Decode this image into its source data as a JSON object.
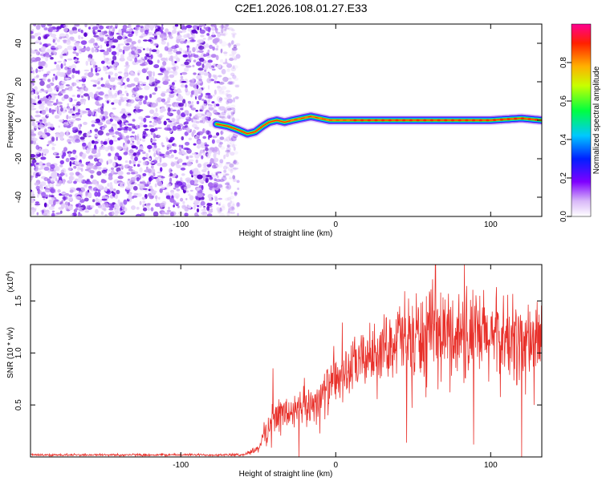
{
  "title": "C2E1.2026.108.01.27.E33",
  "colors": {
    "snr_line": "#e8302a",
    "plot_bg": "#ffffff",
    "axis": "#000000"
  },
  "chart_data": [
    {
      "type": "heatmap",
      "xlabel": "Height of straight line (km)",
      "ylabel": "Frequency (Hz)",
      "xlim": [
        -197,
        133
      ],
      "ylim": [
        -50,
        50
      ],
      "x_ticks": [
        -100,
        0,
        100
      ],
      "x_tick_labels": [
        "-100",
        "0",
        "100"
      ],
      "y_ticks": [
        -40,
        -20,
        0,
        20,
        40
      ],
      "y_tick_labels": [
        "-40",
        "-20",
        "0",
        "20",
        "40"
      ],
      "noise_region_x": [
        -197,
        -65
      ],
      "ridge": {
        "x": [
          -77,
          -70,
          -63,
          -57,
          -52,
          -47,
          -43,
          -38,
          -33,
          -28,
          -22,
          -16,
          -10,
          -4,
          0,
          20,
          60,
          100,
          120,
          133
        ],
        "y": [
          -2,
          -3,
          -5,
          -7,
          -6,
          -3,
          -1,
          0,
          -1,
          0,
          1,
          2,
          1,
          0,
          0,
          0,
          0,
          0,
          1,
          0
        ]
      },
      "colorbar": {
        "label": "Normalized spectral amplitude",
        "ticks": [
          0.0,
          0.2,
          0.4,
          0.6,
          0.8
        ],
        "tick_labels": [
          "0.0",
          "0.2",
          "0.4",
          "0.6",
          "0.8"
        ],
        "range": [
          0,
          1
        ]
      }
    },
    {
      "type": "line",
      "xlabel": "Height of straight line (km)",
      "ylabel": "SNR (10 * v/v)",
      "multiplier": "(x10",
      "multiplier_exp": "4",
      "multiplier_close": ")",
      "xlim": [
        -197,
        133
      ],
      "ylim": [
        0,
        1.85
      ],
      "x_ticks": [
        -100,
        0,
        100
      ],
      "x_tick_labels": [
        "-100",
        "0",
        "100"
      ],
      "y_ticks": [
        0.5,
        1.0,
        1.5
      ],
      "y_tick_labels": [
        "0.5",
        "1.0",
        "1.5"
      ],
      "envelope": {
        "x": [
          -197,
          -60,
          -50,
          -45,
          -40,
          -30,
          -20,
          -10,
          0,
          10,
          20,
          30,
          40,
          50,
          60,
          70,
          80,
          90,
          100,
          110,
          120,
          133
        ],
        "y": [
          0.02,
          0.02,
          0.08,
          0.25,
          0.4,
          0.42,
          0.46,
          0.58,
          0.72,
          0.85,
          0.96,
          1.05,
          1.12,
          1.15,
          1.16,
          1.17,
          1.17,
          1.15,
          1.14,
          1.12,
          1.12,
          1.13
        ]
      },
      "series": [
        {
          "values": []
        }
      ]
    }
  ]
}
